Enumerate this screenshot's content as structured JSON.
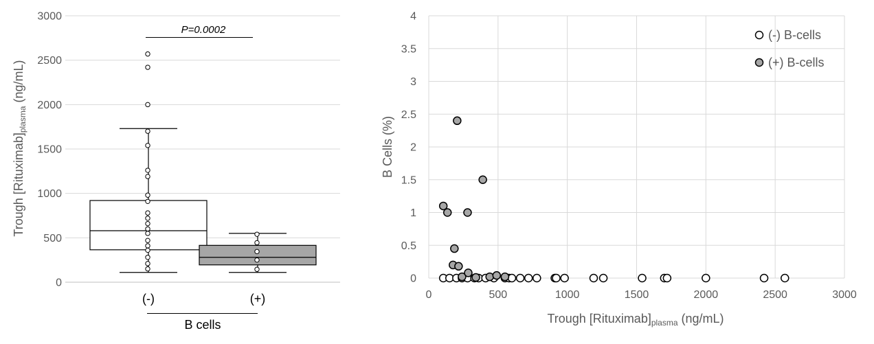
{
  "chart_data": [
    {
      "type": "box",
      "ylabel_main": "Trough [Rituximab]",
      "ylabel_sub": "plasma",
      "ylabel_unit": " (ng/mL)",
      "ylim": [
        0,
        3000
      ],
      "yticks": [
        0,
        500,
        1000,
        1500,
        2000,
        2500,
        3000
      ],
      "ytick_labels": [
        "0",
        "500",
        "1000",
        "1500",
        "2000",
        "2500",
        "3000"
      ],
      "xlabel": "B cells",
      "annotation": "P=0.0002",
      "categories": [
        "(-)",
        "(+)"
      ],
      "box_colors": [
        "#ffffff",
        "#a6a6a6"
      ],
      "groups": [
        {
          "category": "(-)",
          "whisker_low": 110,
          "q1": 365,
          "median": 580,
          "q3": 920,
          "whisker_high": 1730,
          "points": [
            2570,
            2420,
            2000,
            1700,
            1540,
            1260,
            1190,
            980,
            910,
            780,
            720,
            660,
            600,
            550,
            470,
            410,
            360,
            280,
            210,
            150
          ]
        },
        {
          "category": "(+)",
          "whisker_low": 110,
          "q1": 195,
          "median": 280,
          "q3": 415,
          "whisker_high": 550,
          "points": [
            540,
            445,
            345,
            250,
            145
          ]
        }
      ]
    },
    {
      "type": "scatter",
      "xlabel_main": "Trough [Rituximab]",
      "xlabel_sub": "plasma",
      "xlabel_unit": " (ng/mL)",
      "ylabel": "B Cells (%)",
      "xlim": [
        0,
        3000
      ],
      "ylim": [
        0,
        4
      ],
      "xticks": [
        0,
        500,
        1000,
        1500,
        2000,
        2500,
        3000
      ],
      "xtick_labels": [
        "0",
        "500",
        "1000",
        "1500",
        "2000",
        "2500",
        "3000"
      ],
      "yticks": [
        0,
        0.5,
        1,
        1.5,
        2,
        2.5,
        3,
        3.5,
        4
      ],
      "ytick_labels": [
        "0",
        "0.5",
        "1",
        "1.5",
        "2",
        "2.5",
        "3",
        "3.5",
        "4"
      ],
      "grid": true,
      "legend_position": "top-right",
      "series": [
        {
          "name": "(-) B-cells",
          "color": "#ffffff",
          "points": [
            [
              105,
              0
            ],
            [
              150,
              0
            ],
            [
              200,
              0
            ],
            [
              240,
              0
            ],
            [
              280,
              0
            ],
            [
              330,
              0
            ],
            [
              360,
              0
            ],
            [
              410,
              0
            ],
            [
              470,
              0
            ],
            [
              550,
              0
            ],
            [
              580,
              0
            ],
            [
              600,
              0
            ],
            [
              660,
              0
            ],
            [
              720,
              0
            ],
            [
              780,
              0
            ],
            [
              910,
              0
            ],
            [
              920,
              0
            ],
            [
              980,
              0
            ],
            [
              1190,
              0
            ],
            [
              1260,
              0
            ],
            [
              1540,
              0
            ],
            [
              1700,
              0
            ],
            [
              1720,
              0
            ],
            [
              2000,
              0
            ],
            [
              2420,
              0
            ],
            [
              2570,
              0
            ]
          ]
        },
        {
          "name": "(+) B-cells",
          "color": "#a6a6a6",
          "points": [
            [
              105,
              1.1
            ],
            [
              135,
              1.0
            ],
            [
              175,
              0.2
            ],
            [
              185,
              0.45
            ],
            [
              205,
              2.4
            ],
            [
              215,
              0.18
            ],
            [
              240,
              0.02
            ],
            [
              285,
              0.08
            ],
            [
              280,
              1.0
            ],
            [
              340,
              0.01
            ],
            [
              390,
              1.5
            ],
            [
              440,
              0.02
            ],
            [
              490,
              0.04
            ],
            [
              550,
              0.02
            ]
          ]
        }
      ]
    }
  ]
}
